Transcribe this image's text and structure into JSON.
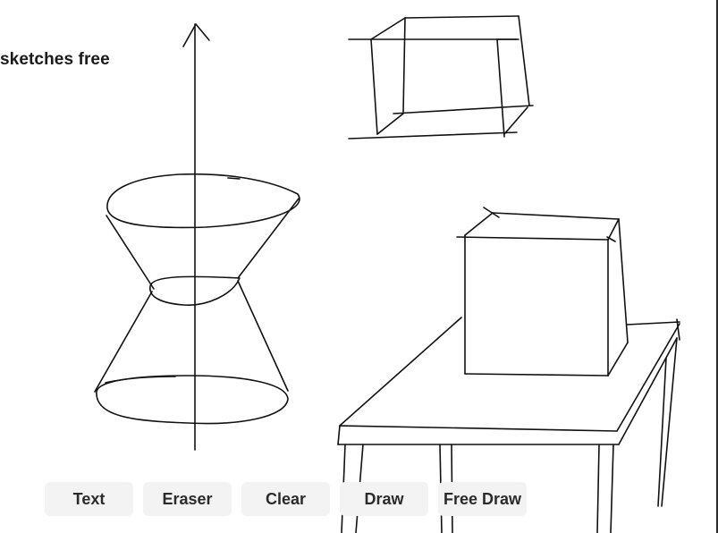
{
  "canvas": {
    "text_note": "sketches free",
    "stroke_color": "#111111",
    "background_color": "#ffffff"
  },
  "toolbar": {
    "buttons": [
      {
        "label": "Text"
      },
      {
        "label": "Eraser"
      },
      {
        "label": "Clear"
      },
      {
        "label": "Draw"
      },
      {
        "label": "Free Draw"
      }
    ],
    "button_background": "#f3f3f3"
  }
}
